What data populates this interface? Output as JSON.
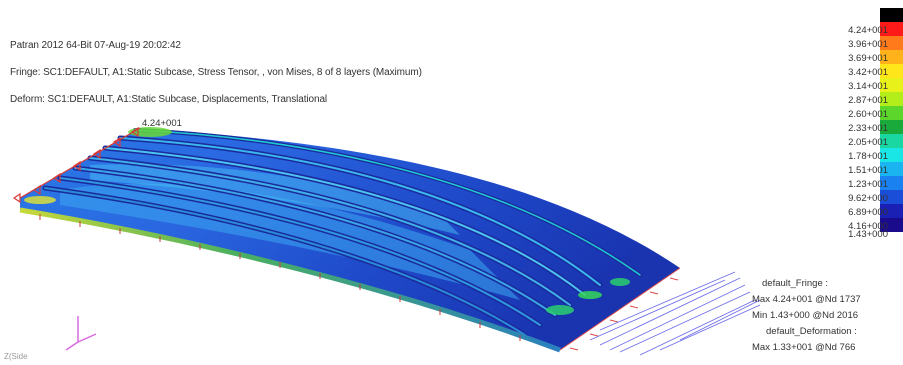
{
  "header": {
    "title_line": "Patran 2012 64-Bit 07-Aug-19 20:02:42",
    "fringe_line": "Fringe: SC1:DEFAULT, A1:Static Subcase, Stress Tensor, , von Mises, 8 of 8 layers (Maximum)",
    "deform_line": "Deform: SC1:DEFAULT, A1:Static Subcase, Displacements, Translational"
  },
  "max_marker_label": "4.24+001",
  "legend": {
    "labels": [
      "4.24+001",
      "3.96+001",
      "3.69+001",
      "3.42+001",
      "3.14+001",
      "2.87+001",
      "2.60+001",
      "2.33+001",
      "2.05+001",
      "1.78+001",
      "1.51+001",
      "1.23+001",
      "9.62+000",
      "6.89+000",
      "4.16+000",
      "1.43+000"
    ],
    "colors": [
      "#000000",
      "#ff1a1a",
      "#ff7a1a",
      "#ffb21a",
      "#ffe61a",
      "#e8f21a",
      "#b4ee1a",
      "#5cd62a",
      "#1aaa3c",
      "#1ad6a0",
      "#1ae6e6",
      "#1ab4f0",
      "#1a82f0",
      "#1a4ed8",
      "#1a20b4",
      "#1a0a8c"
    ]
  },
  "summary": {
    "fringe_title": "default_Fringe :",
    "fringe_max": "Max 4.24+001 @Nd 1737",
    "fringe_min": "Min 1.43+000 @Nd 2016",
    "deform_title": "default_Deformation :",
    "deform_max": "Max 1.33+001 @Nd 766"
  },
  "corner_text": "Z(Side"
}
